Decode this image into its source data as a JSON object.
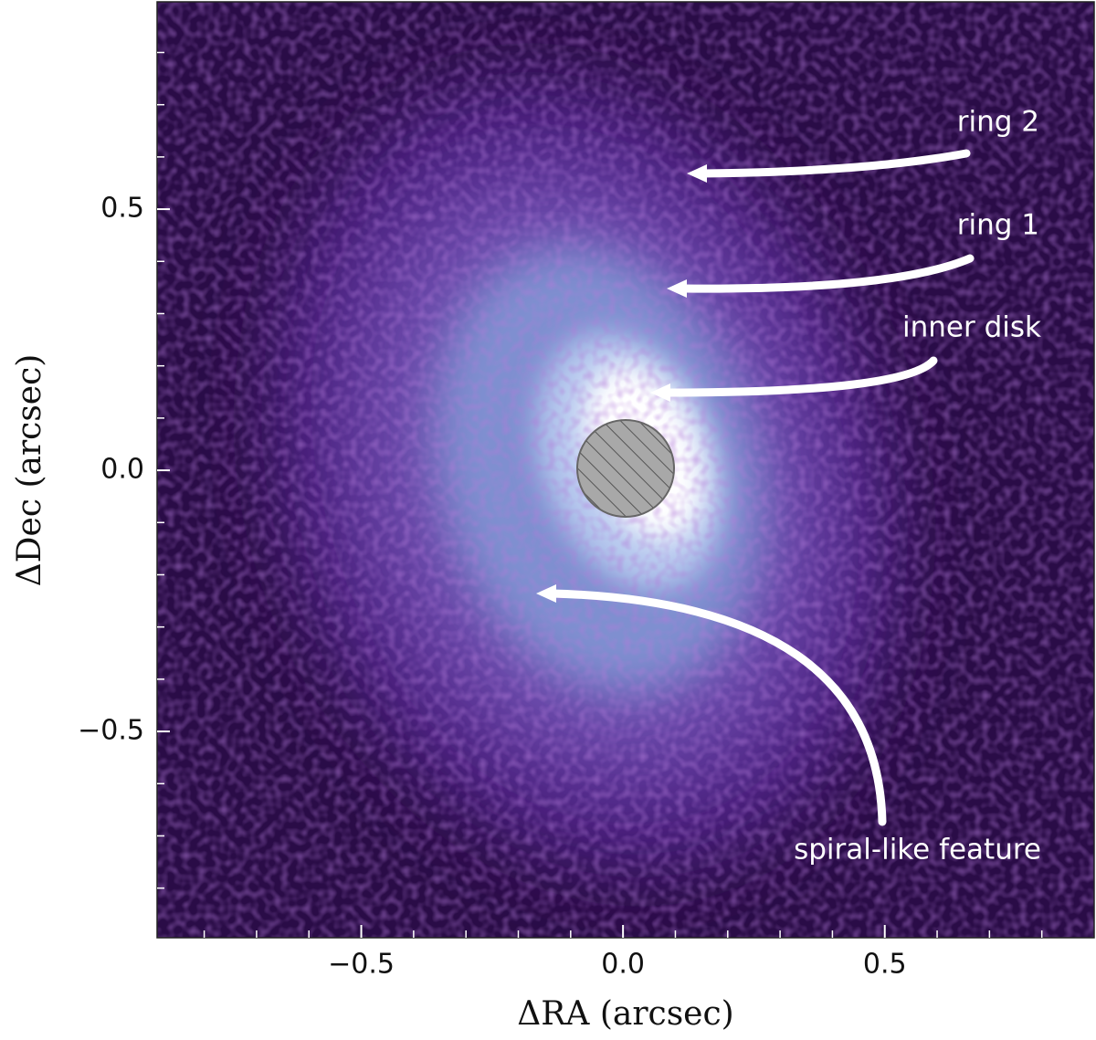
{
  "chart_data": {
    "type": "image",
    "xlabel": "ΔRA (arcsec)",
    "ylabel": "ΔDec (arcsec)",
    "xlim": [
      -0.89,
      0.9
    ],
    "ylim": [
      -0.895,
      0.897
    ],
    "xticks": [
      {
        "value": -0.5,
        "label": "−0.5"
      },
      {
        "value": 0,
        "label": "0.0"
      },
      {
        "value": 0.5,
        "label": "0.5"
      }
    ],
    "yticks": [
      {
        "value": -0.5,
        "label": "−0.5"
      },
      {
        "value": 0,
        "label": "0.0"
      },
      {
        "value": 0.5,
        "label": "0.5"
      }
    ],
    "xminorticks": [
      -0.8,
      -0.7,
      -0.6,
      -0.4,
      -0.3,
      -0.2,
      -0.1,
      0.1,
      0.2,
      0.3,
      0.4,
      0.6,
      0.7,
      0.8
    ],
    "yminorticks": [
      -0.8,
      -0.7,
      -0.6,
      -0.4,
      -0.3,
      -0.2,
      -0.1,
      0.1,
      0.2,
      0.3,
      0.4,
      0.6,
      0.7,
      0.8
    ],
    "annotations": [
      "ring 2",
      "ring 1",
      "inner disk",
      "spiral-like feature"
    ]
  }
}
